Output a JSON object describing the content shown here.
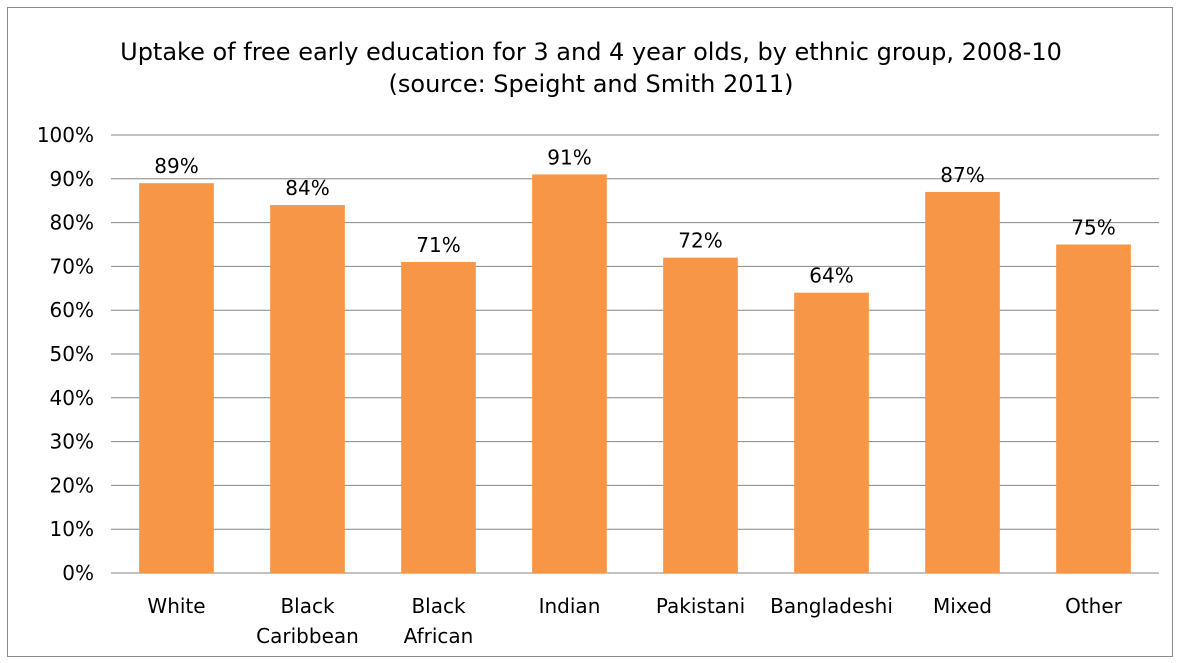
{
  "chart_data": {
    "type": "bar",
    "title_lines": [
      "Uptake of free early education for 3 and 4 year olds, by ethnic group, 2008-10",
      "(source: Speight and Smith 2011)"
    ],
    "categories": [
      [
        "White"
      ],
      [
        "Black",
        "Caribbean"
      ],
      [
        "Black",
        "African"
      ],
      [
        "Indian"
      ],
      [
        "Pakistani"
      ],
      [
        "Bangladeshi"
      ],
      [
        "Mixed"
      ],
      [
        "Other"
      ]
    ],
    "values": [
      89,
      84,
      71,
      91,
      72,
      64,
      87,
      75
    ],
    "data_labels": [
      "89%",
      "84%",
      "71%",
      "91%",
      "72%",
      "64%",
      "87%",
      "75%"
    ],
    "ylim": [
      0,
      100
    ],
    "y_ticks": [
      0,
      10,
      20,
      30,
      40,
      50,
      60,
      70,
      80,
      90,
      100
    ],
    "y_tick_labels": [
      "0%",
      "10%",
      "20%",
      "30%",
      "40%",
      "50%",
      "60%",
      "70%",
      "80%",
      "90%",
      "100%"
    ],
    "xlabel": "",
    "ylabel": "",
    "grid": true,
    "legend": "none",
    "colors": {
      "bar": "#F79646",
      "grid": "#868686",
      "text": "#000000"
    }
  }
}
